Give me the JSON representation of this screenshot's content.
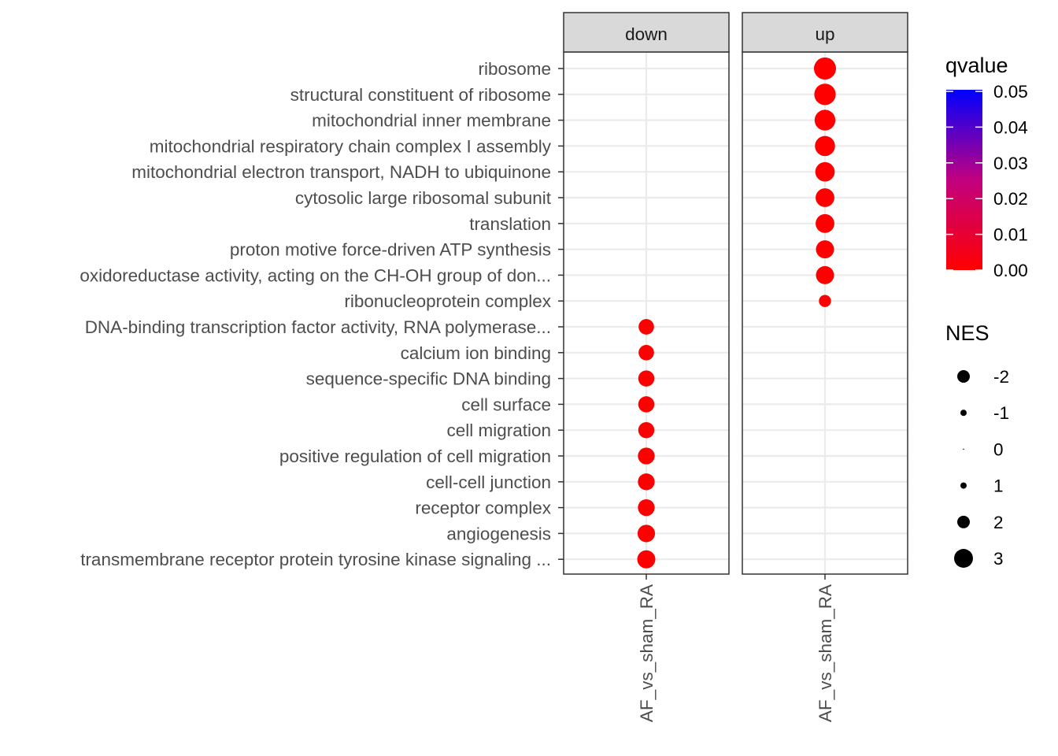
{
  "chart_data": {
    "type": "scatter",
    "facets": [
      "down",
      "up"
    ],
    "x_category": "AF_vs_sham_RA",
    "terms": [
      "ribosome",
      "structural constituent of ribosome",
      "mitochondrial inner membrane",
      "mitochondrial respiratory chain complex I assembly",
      "mitochondrial electron transport, NADH to ubiquinone",
      "cytosolic large ribosomal subunit",
      "translation",
      "proton motive force-driven ATP synthesis",
      "oxidoreductase activity, acting on the CH-OH group of don...",
      "ribonucleoprotein complex",
      "DNA-binding transcription factor activity, RNA polymerase...",
      "calcium ion binding",
      "sequence-specific DNA binding",
      "cell surface",
      "cell migration",
      "positive regulation of cell migration",
      "cell-cell junction",
      "receptor complex",
      "angiogenesis",
      "transmembrane receptor protein tyrosine kinase signaling ..."
    ],
    "points": [
      {
        "term": "ribosome",
        "facet": "up",
        "NES": 3.1,
        "qvalue": 0.0
      },
      {
        "term": "structural constituent of ribosome",
        "facet": "up",
        "NES": 3.0,
        "qvalue": 0.0
      },
      {
        "term": "mitochondrial inner membrane",
        "facet": "up",
        "NES": 2.9,
        "qvalue": 0.0
      },
      {
        "term": "mitochondrial respiratory chain complex I assembly",
        "facet": "up",
        "NES": 2.8,
        "qvalue": 0.0
      },
      {
        "term": "mitochondrial electron transport, NADH to ubiquinone",
        "facet": "up",
        "NES": 2.7,
        "qvalue": 0.0
      },
      {
        "term": "cytosolic large ribosomal subunit",
        "facet": "up",
        "NES": 2.6,
        "qvalue": 0.0
      },
      {
        "term": "translation",
        "facet": "up",
        "NES": 2.6,
        "qvalue": 0.0
      },
      {
        "term": "proton motive force-driven ATP synthesis",
        "facet": "up",
        "NES": 2.5,
        "qvalue": 0.0
      },
      {
        "term": "oxidoreductase activity, acting on the CH-OH group of don...",
        "facet": "up",
        "NES": 2.5,
        "qvalue": 0.0
      },
      {
        "term": "ribonucleoprotein complex",
        "facet": "up",
        "NES": 1.6,
        "qvalue": 0.0
      },
      {
        "term": "DNA-binding transcription factor activity, RNA polymerase...",
        "facet": "down",
        "NES": -2.1,
        "qvalue": 0.0
      },
      {
        "term": "calcium ion binding",
        "facet": "down",
        "NES": -2.1,
        "qvalue": 0.0
      },
      {
        "term": "sequence-specific DNA binding",
        "facet": "down",
        "NES": -2.2,
        "qvalue": 0.0
      },
      {
        "term": "cell surface",
        "facet": "down",
        "NES": -2.2,
        "qvalue": 0.0
      },
      {
        "term": "cell migration",
        "facet": "down",
        "NES": -2.2,
        "qvalue": 0.0
      },
      {
        "term": "positive regulation of cell migration",
        "facet": "down",
        "NES": -2.3,
        "qvalue": 0.0
      },
      {
        "term": "cell-cell junction",
        "facet": "down",
        "NES": -2.3,
        "qvalue": 0.0
      },
      {
        "term": "receptor complex",
        "facet": "down",
        "NES": -2.3,
        "qvalue": 0.0
      },
      {
        "term": "angiogenesis",
        "facet": "down",
        "NES": -2.4,
        "qvalue": 0.0
      },
      {
        "term": "transmembrane receptor protein tyrosine kinase signaling ...",
        "facet": "down",
        "NES": -2.5,
        "qvalue": 0.0
      }
    ],
    "color_legend": {
      "title": "qvalue",
      "range": [
        0.0,
        0.05
      ],
      "ticks": [
        "0.05",
        "0.04",
        "0.03",
        "0.02",
        "0.01",
        "0.00"
      ],
      "low_color": "#FF0000",
      "high_color": "#0000FF"
    },
    "size_legend": {
      "title": "NES",
      "labels": [
        "-2",
        "-1",
        "0",
        "1",
        "2",
        "3"
      ],
      "values": [
        -2,
        -1,
        0,
        1,
        2,
        3
      ]
    },
    "grid": true,
    "legend_position": "right"
  }
}
